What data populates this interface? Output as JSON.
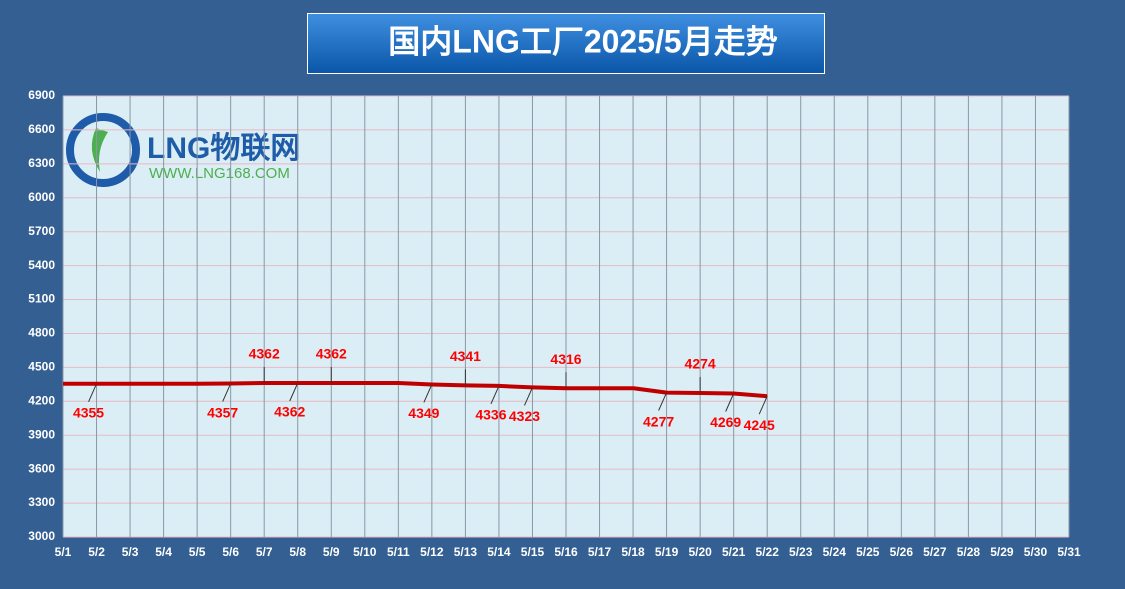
{
  "chart_data": {
    "type": "line",
    "title": "国内LNG工厂2025/5月走势",
    "logo_text": "LNG物联网",
    "logo_url": "WWW.LNG168.COM",
    "categories": [
      "5/1",
      "5/2",
      "5/3",
      "5/4",
      "5/5",
      "5/6",
      "5/7",
      "5/8",
      "5/9",
      "5/10",
      "5/11",
      "5/12",
      "5/13",
      "5/14",
      "5/15",
      "5/16",
      "5/17",
      "5/18",
      "5/19",
      "5/20",
      "5/21",
      "5/22",
      "5/23",
      "5/24",
      "5/25",
      "5/26",
      "5/27",
      "5/28",
      "5/29",
      "5/30",
      "5/31"
    ],
    "series": [
      {
        "name": "LNG工厂",
        "color": "#c00000",
        "values": [
          4355,
          4355,
          4355,
          4355,
          4355,
          4357,
          4362,
          4362,
          4362,
          4362,
          4362,
          4349,
          4341,
          4336,
          4323,
          4316,
          4316,
          4316,
          4277,
          4274,
          4269,
          4245,
          null,
          null,
          null,
          null,
          null,
          null,
          null,
          null,
          null
        ],
        "value_labels": [
          null,
          "4355",
          null,
          null,
          null,
          "4357",
          "4362",
          "4362",
          "4362",
          null,
          null,
          "4349",
          "4341",
          "4336",
          "4323",
          "4316",
          null,
          null,
          "4277",
          "4274",
          "4269",
          "4245",
          null,
          null,
          null,
          null,
          null,
          null,
          null,
          null,
          null
        ]
      }
    ],
    "ylim": [
      3000,
      6900
    ],
    "yticks": [
      3000,
      3300,
      3600,
      3900,
      4200,
      4500,
      4800,
      5100,
      5400,
      5700,
      6000,
      6300,
      6600,
      6900
    ],
    "grid": true
  }
}
